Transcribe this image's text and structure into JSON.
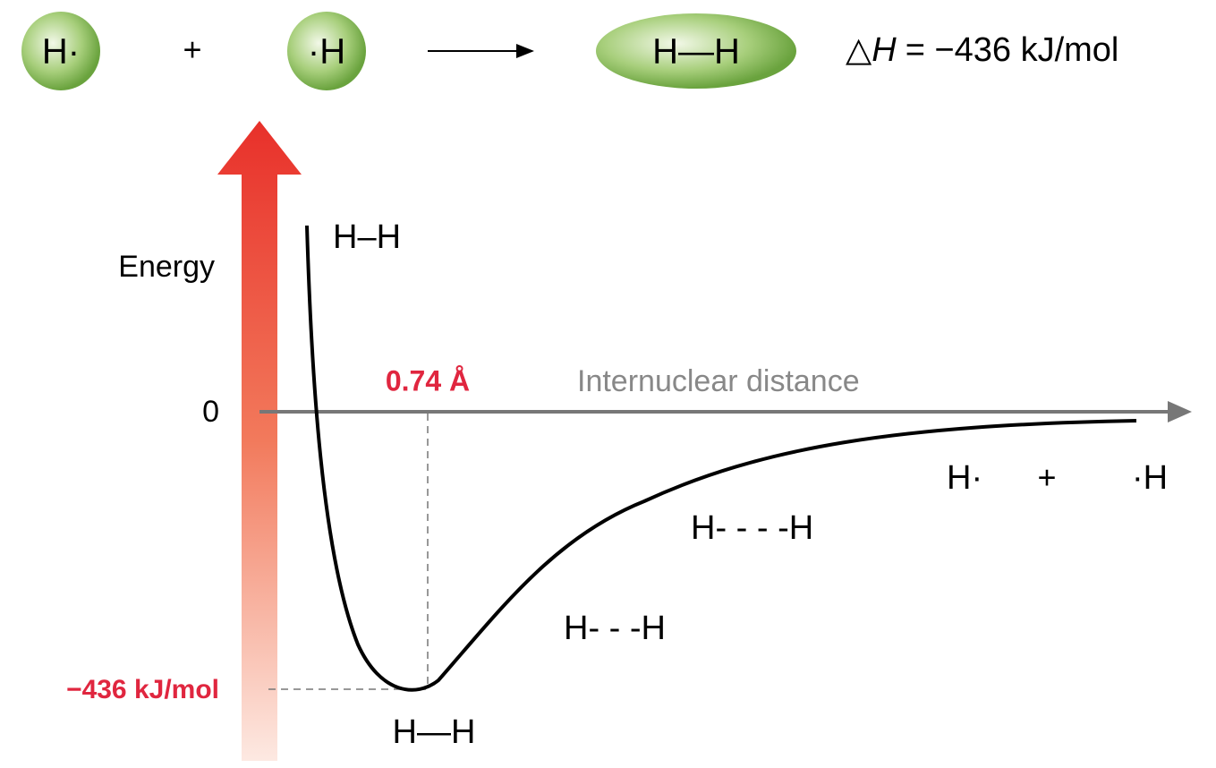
{
  "reaction": {
    "reactant_1": "H·",
    "plus": "+",
    "reactant_2": "·H",
    "product": "H—H",
    "delta_h": {
      "symbol": "△",
      "variable": "H",
      "value": "= −436 kJ/mol"
    }
  },
  "diagram": {
    "y_label": "Energy",
    "zero": "0",
    "x_label": "Internuclear distance",
    "bond_length": "0.74 Å",
    "minimum_energy": "−436 kJ/mol",
    "curve_labels": {
      "compressed": "H–H",
      "bonded": "H—H",
      "close": "H- - -H",
      "far": "H- - - -H",
      "separated_1": "H·",
      "separated_plus": "+",
      "separated_2": "·H"
    }
  }
}
